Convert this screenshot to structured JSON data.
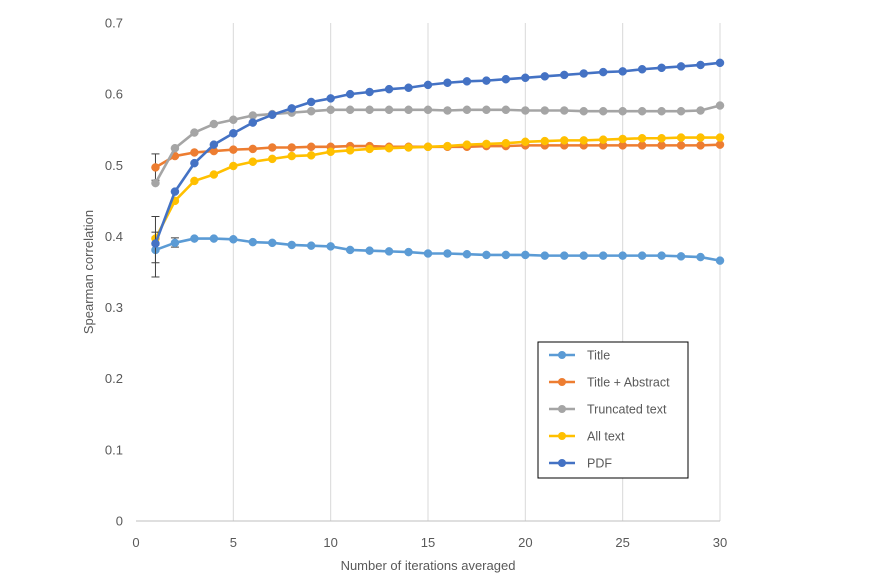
{
  "chart_data": {
    "type": "line",
    "title": "",
    "xlabel": "Number of iterations averaged",
    "ylabel": "Spearman correlation",
    "xlim": [
      0,
      30
    ],
    "ylim": [
      0,
      0.7
    ],
    "xticks": [
      0,
      5,
      10,
      15,
      20,
      25,
      30
    ],
    "yticks": [
      0,
      0.1,
      0.2,
      0.3,
      0.4,
      0.5,
      0.6,
      0.7
    ],
    "ytick_labels": [
      "0",
      "0.1",
      "0.2",
      "0.3",
      "0.4",
      "0.5",
      "0.6",
      "0.7"
    ],
    "grid": "vertical",
    "legend_position": "bottom-right",
    "x": [
      1,
      2,
      3,
      4,
      5,
      6,
      7,
      8,
      9,
      10,
      11,
      12,
      13,
      14,
      15,
      16,
      17,
      18,
      19,
      20,
      21,
      22,
      23,
      24,
      25,
      26,
      27,
      28,
      29,
      30
    ],
    "series": [
      {
        "name": "Title",
        "color": "#5b9bd5",
        "values": [
          0.381,
          0.391,
          0.397,
          0.397,
          0.396,
          0.392,
          0.391,
          0.388,
          0.387,
          0.386,
          0.381,
          0.38,
          0.379,
          0.378,
          0.376,
          0.376,
          0.375,
          0.374,
          0.374,
          0.374,
          0.373,
          0.373,
          0.373,
          0.373,
          0.373,
          0.373,
          0.373,
          0.372,
          0.371,
          0.366
        ],
        "error_bars": [
          {
            "x": 1,
            "low": 0.363,
            "high": 0.399
          },
          {
            "x": 2,
            "low": 0.385,
            "high": 0.398
          }
        ]
      },
      {
        "name": "Title + Abstract",
        "color": "#ed7d31",
        "values": [
          0.497,
          0.513,
          0.518,
          0.52,
          0.522,
          0.523,
          0.525,
          0.525,
          0.526,
          0.526,
          0.527,
          0.527,
          0.526,
          0.526,
          0.526,
          0.526,
          0.526,
          0.527,
          0.527,
          0.528,
          0.528,
          0.528,
          0.528,
          0.528,
          0.528,
          0.528,
          0.528,
          0.528,
          0.528,
          0.529
        ],
        "error_bars": [
          {
            "x": 1,
            "low": 0.479,
            "high": 0.516
          }
        ]
      },
      {
        "name": "Truncated text",
        "color": "#a5a5a5",
        "values": [
          0.475,
          0.524,
          0.546,
          0.558,
          0.564,
          0.57,
          0.572,
          0.574,
          0.576,
          0.578,
          0.578,
          0.578,
          0.578,
          0.578,
          0.578,
          0.577,
          0.578,
          0.578,
          0.578,
          0.577,
          0.577,
          0.577,
          0.576,
          0.576,
          0.576,
          0.576,
          0.576,
          0.576,
          0.577,
          0.584
        ],
        "error_bars": []
      },
      {
        "name": "All text",
        "color": "#ffc000",
        "values": [
          0.397,
          0.45,
          0.478,
          0.487,
          0.499,
          0.505,
          0.509,
          0.513,
          0.514,
          0.519,
          0.521,
          0.523,
          0.524,
          0.525,
          0.526,
          0.527,
          0.529,
          0.53,
          0.531,
          0.533,
          0.534,
          0.535,
          0.535,
          0.536,
          0.537,
          0.538,
          0.538,
          0.539,
          0.539,
          0.539
        ],
        "error_bars": [
          {
            "x": 1,
            "low": 0.388,
            "high": 0.406
          }
        ]
      },
      {
        "name": "PDF",
        "color": "#4472c4",
        "values": [
          0.39,
          0.463,
          0.503,
          0.529,
          0.545,
          0.56,
          0.571,
          0.58,
          0.589,
          0.594,
          0.6,
          0.603,
          0.607,
          0.609,
          0.613,
          0.616,
          0.618,
          0.619,
          0.621,
          0.623,
          0.625,
          0.627,
          0.629,
          0.631,
          0.632,
          0.635,
          0.637,
          0.639,
          0.641,
          0.644
        ],
        "error_bars": [
          {
            "x": 1,
            "low": 0.343,
            "high": 0.428
          }
        ]
      }
    ]
  }
}
